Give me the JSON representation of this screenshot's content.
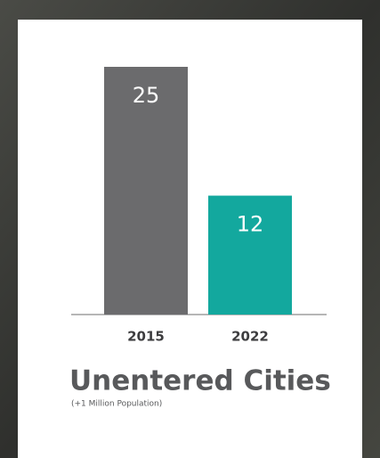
{
  "chart_data": {
    "type": "bar",
    "title": "Unentered Cities",
    "subtitle": "(+1 Million Population)",
    "categories": [
      "2015",
      "2022"
    ],
    "values": [
      25,
      12
    ],
    "colors": [
      "#6b6b6d",
      "#13a89e"
    ]
  }
}
